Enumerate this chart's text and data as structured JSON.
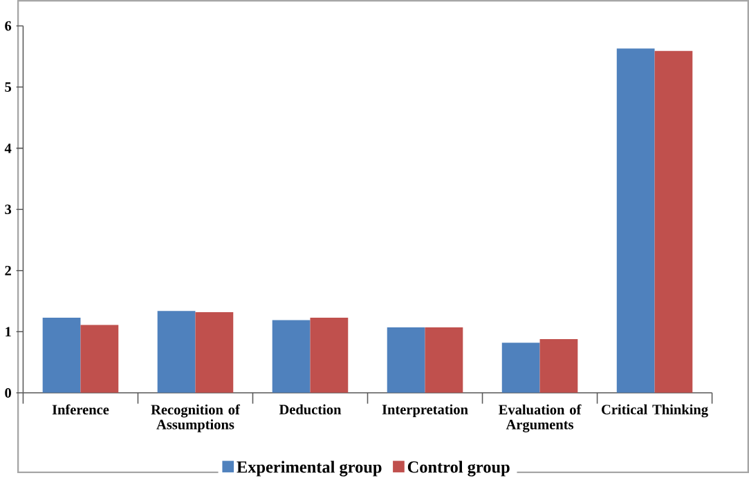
{
  "chart_data": {
    "type": "bar",
    "categories": [
      "Inference",
      "Recognition of Assumptions",
      "Deduction",
      "Interpretation",
      "Evaluation of Arguments",
      "Critical Thinking"
    ],
    "series": [
      {
        "name": "Experimental group",
        "color": "#4f81bd",
        "values": [
          1.23,
          1.34,
          1.19,
          1.07,
          0.82,
          5.63
        ]
      },
      {
        "name": "Control group",
        "color": "#c0504d",
        "values": [
          1.11,
          1.32,
          1.23,
          1.07,
          0.88,
          5.59
        ]
      }
    ],
    "ylim": [
      0,
      6
    ],
    "yticks": [
      0,
      1,
      2,
      3,
      4,
      5,
      6
    ],
    "grid": false,
    "legend": "bottom"
  }
}
